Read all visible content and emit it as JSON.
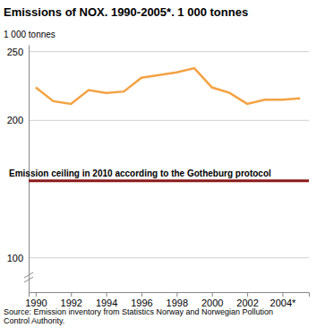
{
  "chart_data": {
    "type": "line",
    "title": "Emissions of NOX. 1990-2005*. 1 000 tonnes",
    "y_label": "1 000 tonnes",
    "x": [
      1990,
      1991,
      1992,
      1993,
      1994,
      1995,
      1996,
      1997,
      1998,
      1999,
      2000,
      2001,
      2002,
      2003,
      2004,
      2005
    ],
    "values": [
      224,
      214,
      212,
      222,
      220,
      221,
      231,
      233,
      235,
      238,
      224,
      220,
      212,
      215,
      215,
      216
    ],
    "color": "#f3a243",
    "xlim": [
      1989.6,
      2005.5
    ],
    "xticks": [
      1990,
      1992,
      1994,
      1996,
      1998,
      2000,
      2002,
      {
        "value": 2004,
        "label": "2004*"
      }
    ],
    "ylim": [
      75,
      255
    ],
    "yticks": [
      100,
      200,
      250
    ],
    "grid": true,
    "reference_line": {
      "value": 156,
      "label": "Emission ceiling in 2010 according to the Gotheburg protocol",
      "color": "#8b1a1a"
    },
    "source": [
      "Source: Emission inventory from Statistics Norway and Norwegian Pollution",
      "Control Authority."
    ]
  }
}
